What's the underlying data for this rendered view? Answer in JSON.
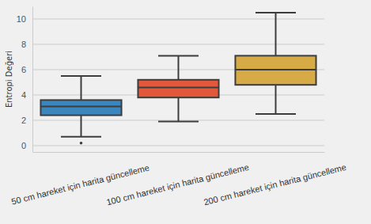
{
  "chart_data": {
    "type": "box",
    "y_label": "Entropi Değeri",
    "categories": [
      "50 cm hareket için harita güncelleme",
      "100 cm hareket için harita güncelleme",
      "200 cm hareket için harita güncelleme"
    ],
    "boxes": [
      {
        "low": 0.7,
        "q1": 2.4,
        "median": 3.1,
        "q3": 3.6,
        "high": 5.5,
        "outliers": [
          0.2
        ]
      },
      {
        "low": 1.9,
        "q1": 3.8,
        "median": 4.6,
        "q3": 5.2,
        "high": 7.1,
        "outliers": []
      },
      {
        "low": 2.5,
        "q1": 4.8,
        "median": 6.0,
        "q3": 7.1,
        "high": 10.5,
        "outliers": []
      }
    ],
    "colors": [
      "#3a87c0",
      "#e2583b",
      "#d6aa45"
    ],
    "ylim": [
      -0.5,
      11
    ],
    "yticks": [
      0,
      2,
      4,
      6,
      8,
      10
    ],
    "grid": true
  }
}
